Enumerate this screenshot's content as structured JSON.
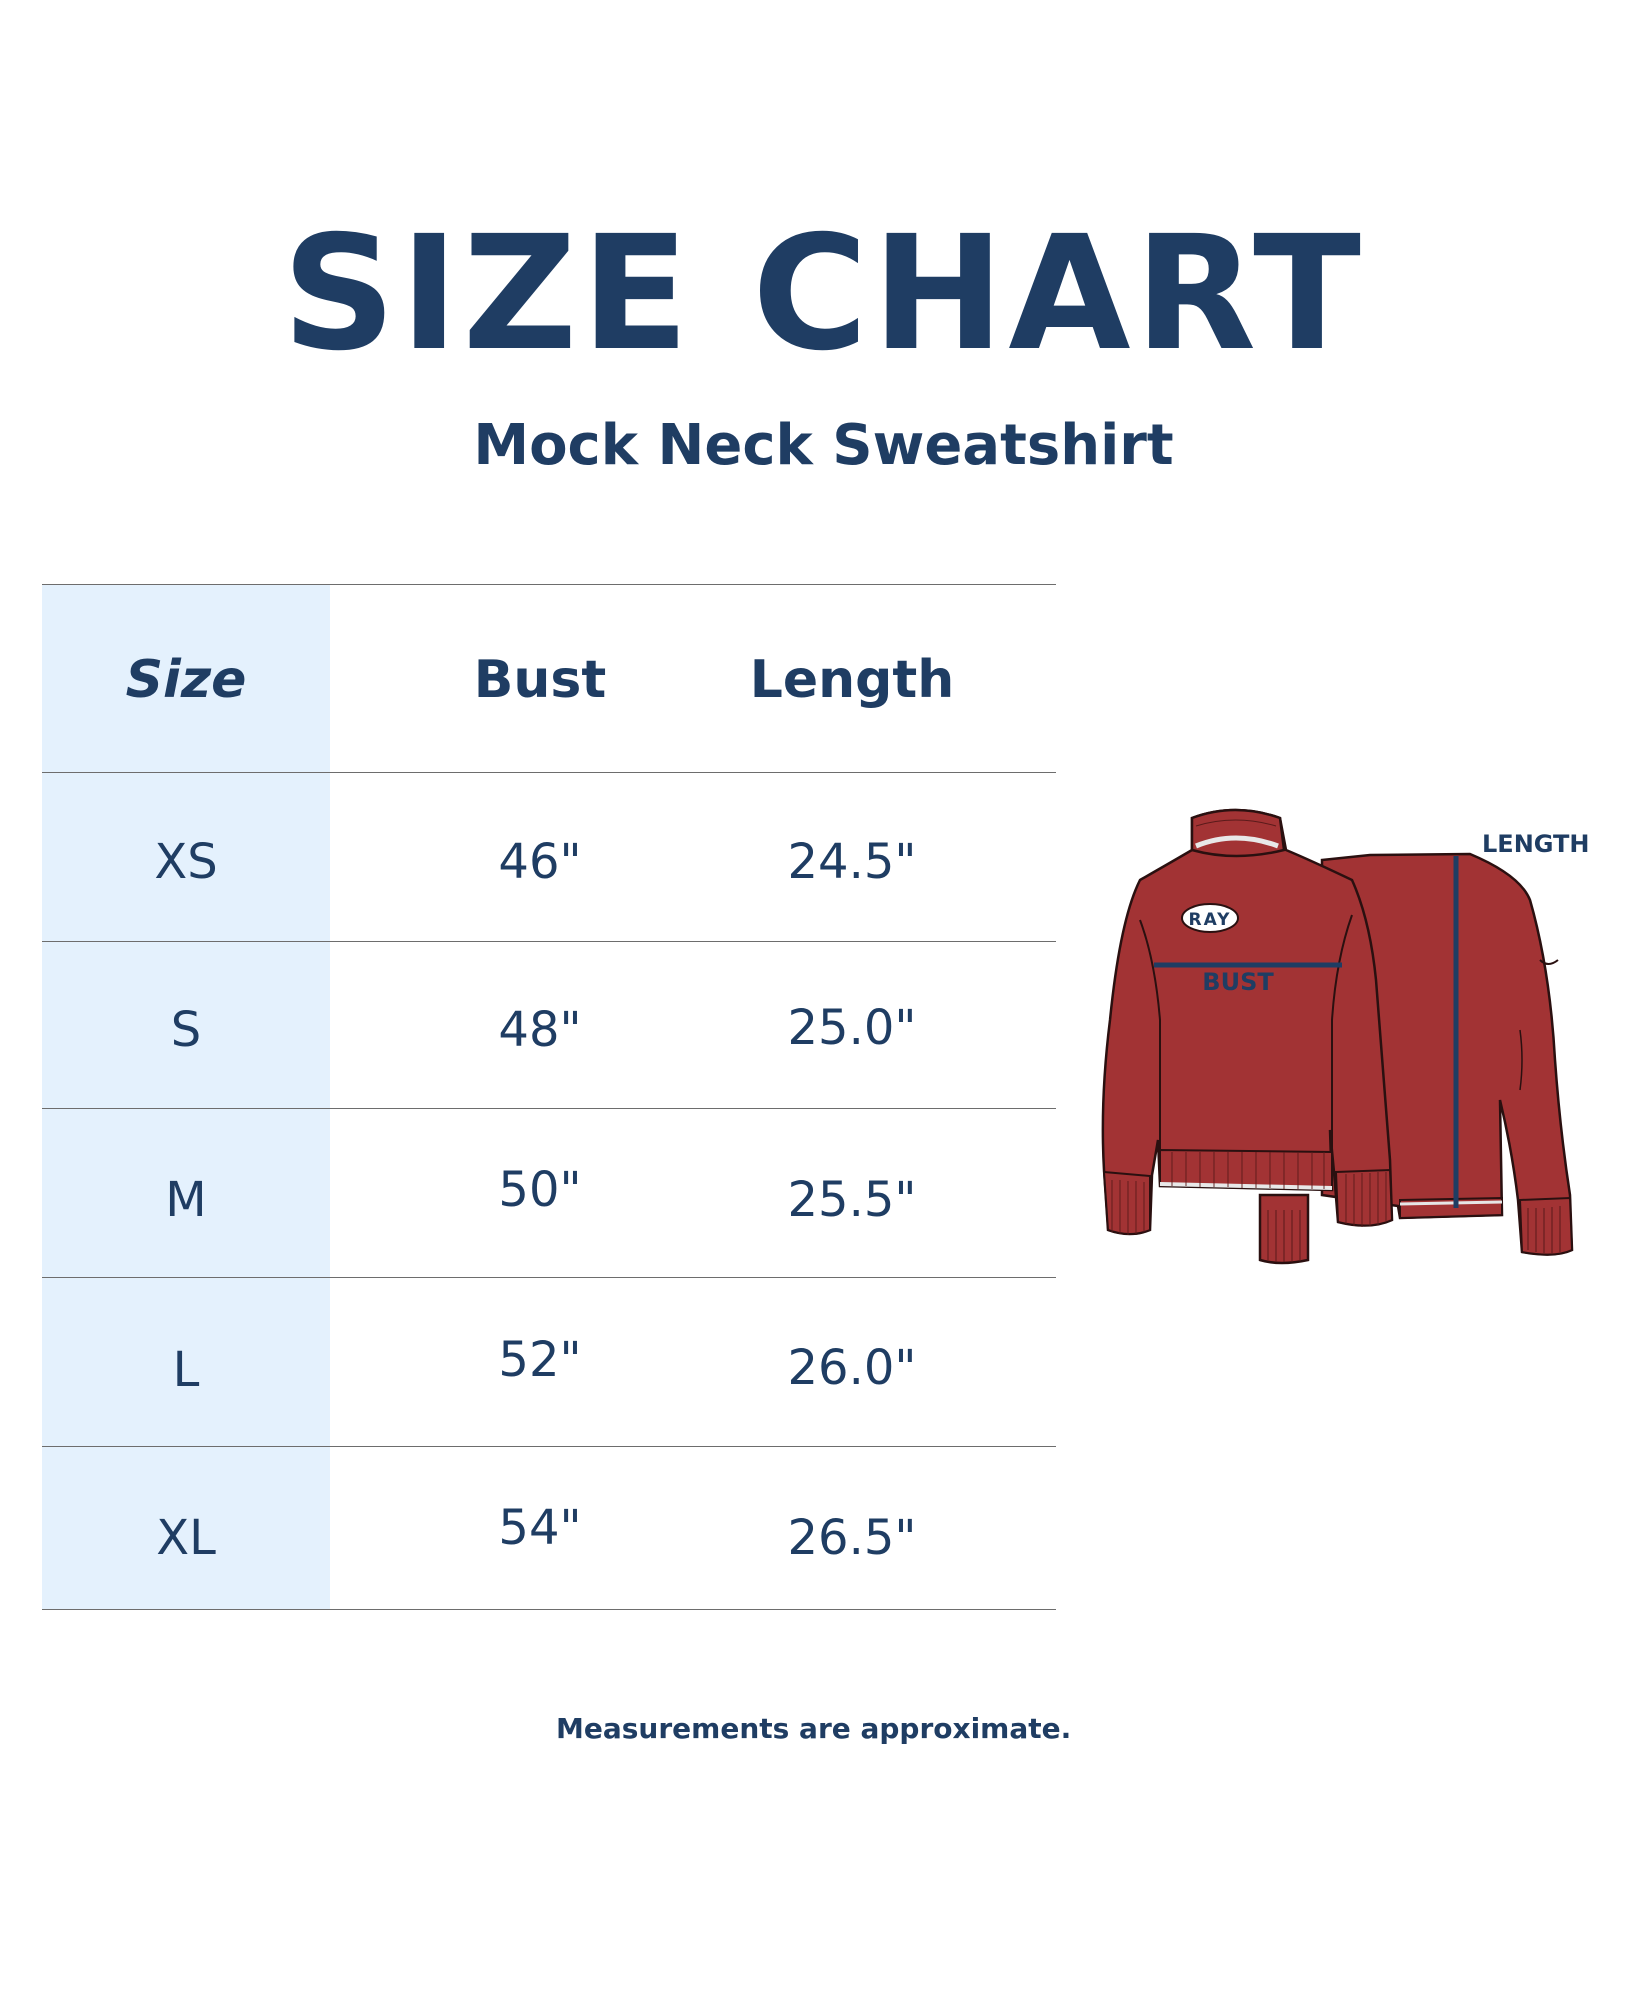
{
  "title": "SIZE CHART",
  "subtitle": "Mock Neck Sweatshirt",
  "table": {
    "headers": [
      "Size",
      "Bust",
      "Length"
    ],
    "rows": [
      {
        "size": "XS",
        "bust": "46\"",
        "length": "24.5\""
      },
      {
        "size": "S",
        "bust": "48\"",
        "length": "25.0\""
      },
      {
        "size": "M",
        "bust": "50\"",
        "length": "25.5\""
      },
      {
        "size": "L",
        "bust": "52\"",
        "length": "26.0\""
      },
      {
        "size": "XL",
        "bust": "54\"",
        "length": "26.5\""
      }
    ]
  },
  "illustration": {
    "logo_text": "RAY",
    "bust_label": "BUST",
    "length_label": "LENGTH",
    "garment_color": "#a23334"
  },
  "note": "Measurements are approximate.",
  "colors": {
    "text": "#1f3d63",
    "size_column_bg": "#e4f1fd",
    "rule": "#6d6d6d"
  }
}
